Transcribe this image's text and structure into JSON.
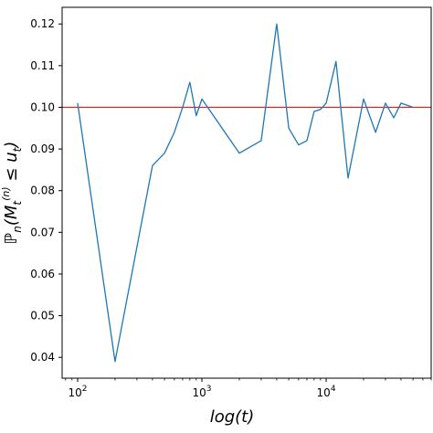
{
  "chart_data": {
    "type": "line",
    "x_scale": "log",
    "xlim": [
      75,
      70000
    ],
    "ylim": [
      0.035,
      0.124
    ],
    "xlabel": "log(t)",
    "ylabel": "ℙ_n(M_t^(n) ≤ u_t)",
    "x_ticks": [
      {
        "value": 100,
        "base": "10",
        "exp": "2"
      },
      {
        "value": 1000,
        "base": "10",
        "exp": "3"
      },
      {
        "value": 10000,
        "base": "10",
        "exp": "4"
      }
    ],
    "y_ticks": [
      0.04,
      0.05,
      0.06,
      0.07,
      0.08,
      0.09,
      0.1,
      0.11,
      0.12
    ],
    "y_tick_labels": [
      "0.04",
      "0.05",
      "0.06",
      "0.07",
      "0.08",
      "0.09",
      "0.10",
      "0.11",
      "0.12"
    ],
    "reference_line": {
      "y": 0.1,
      "color": "#d62728"
    },
    "series": [
      {
        "color": "#1f77b4",
        "points": [
          [
            100,
            0.101
          ],
          [
            200,
            0.039
          ],
          [
            400,
            0.086
          ],
          [
            500,
            0.089
          ],
          [
            600,
            0.094
          ],
          [
            700,
            0.1
          ],
          [
            800,
            0.106
          ],
          [
            900,
            0.098
          ],
          [
            1000,
            0.102
          ],
          [
            2000,
            0.089
          ],
          [
            3000,
            0.092
          ],
          [
            4000,
            0.12
          ],
          [
            5000,
            0.095
          ],
          [
            6000,
            0.091
          ],
          [
            7000,
            0.092
          ],
          [
            8000,
            0.099
          ],
          [
            9000,
            0.0995
          ],
          [
            10000,
            0.101
          ],
          [
            12000,
            0.111
          ],
          [
            15000,
            0.083
          ],
          [
            20000,
            0.102
          ],
          [
            25000,
            0.094
          ],
          [
            30000,
            0.101
          ],
          [
            35000,
            0.0975
          ],
          [
            40000,
            0.101
          ],
          [
            50000,
            0.1
          ]
        ]
      }
    ]
  }
}
